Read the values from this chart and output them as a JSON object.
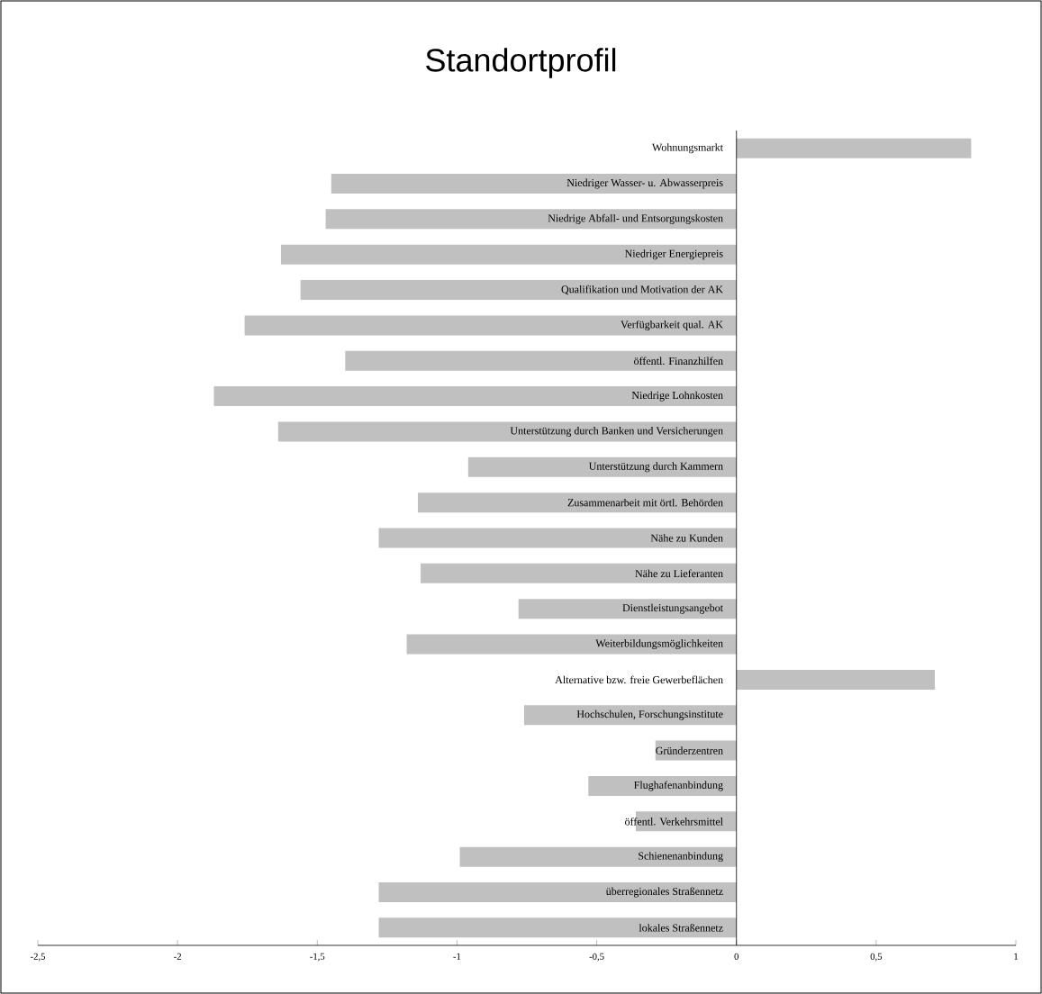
{
  "chart_data": {
    "type": "bar",
    "orientation": "horizontal",
    "title": "Standortprofil",
    "color": "#c0c0c0",
    "categories": [
      "Wohnungsmarkt",
      "Niedriger Wasser- u. Abwasserpreis",
      "Niedrige Abfall- und Entsorgungskosten",
      "Niedriger Energiepreis",
      "Qualifikation und Motivation der AK",
      "Verfügbarkeit qual. AK",
      "öffentl. Finanzhilfen",
      "Niedrige Lohnkosten",
      "Unterstützung durch Banken und Versicherungen",
      "Unterstützung durch Kammern",
      "Zusammenarbeit mit örtl. Behörden",
      "Nähe zu Kunden",
      "Nähe zu Lieferanten",
      "Dienstleistungsangebot",
      "Weiterbildungsmöglichkeiten",
      "Alternative bzw. freie Gewerbeflächen",
      "Hochschulen, Forschungsinstitute",
      "Gründerzentren",
      "Flughafenanbindung",
      "öffentl. Verkehrsmittel",
      "Schienenanbindung",
      "überregionales Straßennetz",
      "lokales Straßennetz"
    ],
    "values": [
      0.84,
      -1.45,
      -1.47,
      -1.63,
      -1.56,
      -1.76,
      -1.4,
      -1.87,
      -1.64,
      -0.96,
      -1.14,
      -1.28,
      -1.13,
      -0.78,
      -1.18,
      0.71,
      -0.76,
      -0.29,
      -0.53,
      -0.36,
      -0.99,
      -1.28,
      -1.28
    ],
    "xlim": [
      -2.5,
      1
    ],
    "xticks": [
      {
        "value": -2.5,
        "label": "-2,5"
      },
      {
        "value": -2,
        "label": "-2"
      },
      {
        "value": -1.5,
        "label": "-1,5"
      },
      {
        "value": -1,
        "label": "-1"
      },
      {
        "value": -0.5,
        "label": "-0,5"
      },
      {
        "value": 0,
        "label": "0"
      },
      {
        "value": 0.5,
        "label": "0,5"
      },
      {
        "value": 1,
        "label": "1"
      }
    ]
  }
}
